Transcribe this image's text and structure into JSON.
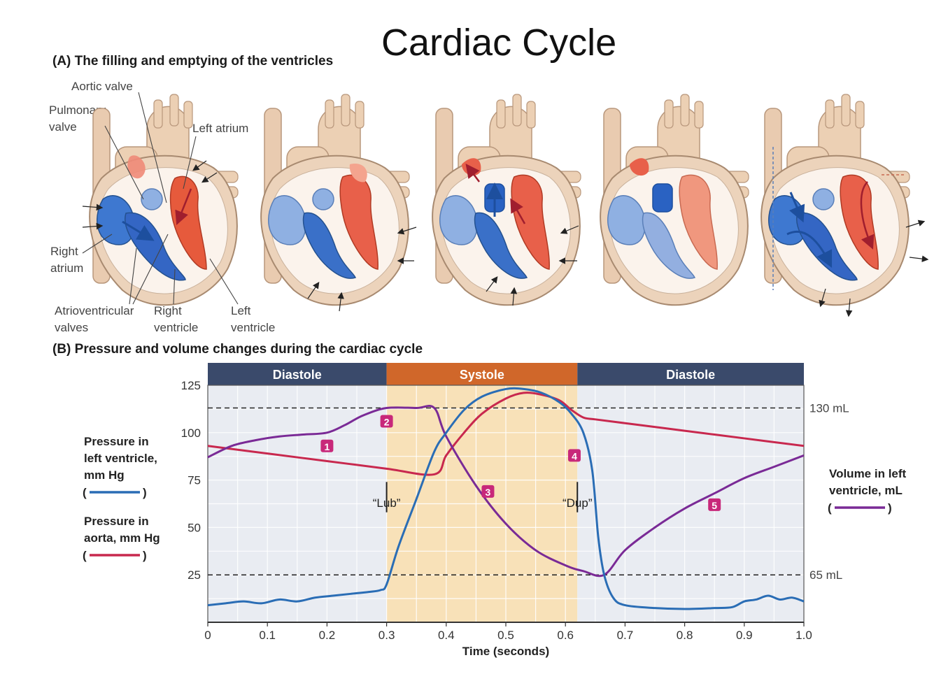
{
  "title": "Cardiac Cycle",
  "section_a": {
    "title": "(A)  The filling and emptying of the ventricles",
    "labels": {
      "aortic_valve": "Aortic valve",
      "pulmonary_valve_1": "Pulmonary",
      "pulmonary_valve_2": "valve",
      "left_atrium": "Left atrium",
      "right_atrium_1": "Right",
      "right_atrium_2": "atrium",
      "av_valves_1": "Atrioventricular",
      "av_valves_2": "valves",
      "right_ventricle_1": "Right",
      "right_ventricle_2": "ventricle",
      "left_ventricle_1": "Left",
      "left_ventricle_2": "ventricle"
    }
  },
  "section_b": {
    "title": "(B)  Pressure and volume changes during the cardiac cycle",
    "phases": [
      "Diastole",
      "Systole",
      "Diastole"
    ],
    "legend_left": {
      "lv_pressure": [
        "Pressure in",
        "left ventricle,",
        "mm Hg"
      ],
      "aorta_pressure": [
        "Pressure in",
        "aorta, mm Hg"
      ]
    },
    "legend_right": {
      "volume": [
        "Volume in left",
        "ventricle, mL"
      ]
    }
  },
  "colors": {
    "lv_pressure": "#2a6db5",
    "aorta_pressure": "#c8284e",
    "volume": "#7a2a96",
    "systole_band": "#f8e1b8",
    "diastole_band": "#e9ecf2",
    "phase_header_diastole": "#3a4a6b",
    "phase_header_systole": "#d0672a",
    "marker": "#c8287a"
  },
  "chart_data": {
    "type": "line",
    "xlabel": "Time (seconds)",
    "x_ticks": [
      "0",
      "0.1",
      "0.2",
      "0.3",
      "0.4",
      "0.5",
      "0.6",
      "0.7",
      "0.8",
      "0.9",
      "1.0"
    ],
    "y_ticks": [
      "25",
      "50",
      "75",
      "100",
      "125"
    ],
    "xlim": [
      0,
      1.0
    ],
    "ylim": [
      0,
      125
    ],
    "phases": [
      {
        "name": "Diastole",
        "start": 0,
        "end": 0.3
      },
      {
        "name": "Systole",
        "start": 0.3,
        "end": 0.62
      },
      {
        "name": "Diastole",
        "start": 0.62,
        "end": 1.0
      }
    ],
    "reference_lines": [
      {
        "label": "130 mL",
        "y": 113
      },
      {
        "label": "65 mL",
        "y": 25
      }
    ],
    "heart_sounds": [
      {
        "label": "“Lub”",
        "x": 0.3
      },
      {
        "label": "“Dup”",
        "x": 0.62
      }
    ],
    "markers": [
      {
        "label": "1",
        "x": 0.2,
        "y": 93
      },
      {
        "label": "2",
        "x": 0.3,
        "y": 106
      },
      {
        "label": "3",
        "x": 0.47,
        "y": 69
      },
      {
        "label": "4",
        "x": 0.615,
        "y": 88
      },
      {
        "label": "5",
        "x": 0.85,
        "y": 62
      }
    ],
    "series": [
      {
        "name": "Pressure in left ventricle, mm Hg",
        "x": [
          0,
          0.03,
          0.06,
          0.09,
          0.12,
          0.15,
          0.18,
          0.21,
          0.24,
          0.27,
          0.29,
          0.3,
          0.32,
          0.35,
          0.38,
          0.4,
          0.43,
          0.46,
          0.5,
          0.53,
          0.56,
          0.59,
          0.61,
          0.63,
          0.645,
          0.655,
          0.665,
          0.68,
          0.7,
          0.75,
          0.8,
          0.85,
          0.88,
          0.9,
          0.92,
          0.94,
          0.96,
          0.98,
          1.0
        ],
        "y": [
          9,
          10,
          11,
          10,
          12,
          11,
          13,
          14,
          15,
          16,
          17,
          20,
          40,
          65,
          90,
          100,
          112,
          119,
          123,
          123,
          121,
          116,
          110,
          100,
          80,
          45,
          25,
          13,
          9,
          7.5,
          7,
          7.5,
          8,
          11,
          12,
          14,
          12,
          13,
          11
        ]
      },
      {
        "name": "Pressure in aorta, mm Hg",
        "x": [
          0,
          0.1,
          0.2,
          0.3,
          0.38,
          0.4,
          0.43,
          0.46,
          0.5,
          0.53,
          0.56,
          0.59,
          0.61,
          0.63,
          0.65,
          0.7,
          0.8,
          0.9,
          1.0
        ],
        "y": [
          93,
          89,
          85,
          81,
          78,
          88,
          100,
          110,
          118,
          121,
          120,
          117,
          112,
          108,
          107,
          105,
          101,
          97,
          93
        ]
      },
      {
        "name": "Volume in left ventricle, mL",
        "x": [
          0,
          0.04,
          0.08,
          0.12,
          0.16,
          0.2,
          0.23,
          0.26,
          0.3,
          0.35,
          0.38,
          0.4,
          0.45,
          0.5,
          0.55,
          0.6,
          0.63,
          0.665,
          0.7,
          0.75,
          0.8,
          0.85,
          0.9,
          0.95,
          1.0
        ],
        "y": [
          87,
          93,
          96,
          98,
          99,
          100,
          104,
          109,
          113,
          113,
          113,
          98,
          72,
          52,
          38,
          30,
          27,
          25,
          38,
          50,
          60,
          68,
          76,
          82,
          88
        ]
      }
    ]
  }
}
